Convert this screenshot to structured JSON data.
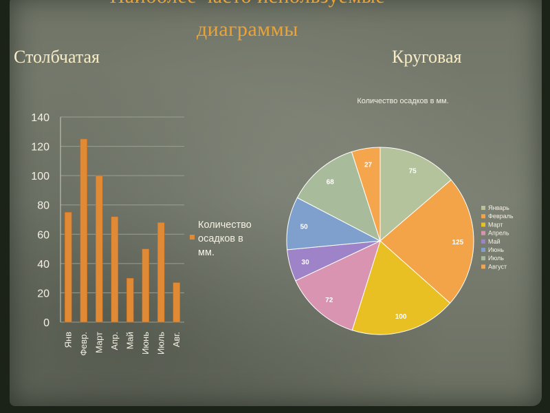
{
  "slide": {
    "title_line1": "Наиболее  часто  используемые",
    "title_line2": "диаграммы",
    "left_label": "Столбчатая",
    "right_label": "Круговая"
  },
  "colors": {
    "title": "#e8a33a",
    "labels": "#f7ecc5",
    "bar": "#e08a35",
    "bar_stroke": "#b96a22"
  },
  "chart_data": [
    {
      "type": "bar",
      "title": "",
      "xlabel": "",
      "ylabel": "",
      "categories": [
        "Янв",
        "Февр.",
        "Март",
        "Апр.",
        "Май",
        "Июнь",
        "Июль",
        "Авг."
      ],
      "series": [
        {
          "name": "Количество осадков в мм.",
          "values": [
            75,
            125,
            100,
            72,
            30,
            50,
            68,
            27
          ]
        }
      ],
      "ylim": [
        0,
        140
      ],
      "yticks": [
        0,
        20,
        40,
        60,
        80,
        100,
        120,
        140
      ],
      "grid": true,
      "legend": "right",
      "legend_lines": [
        "Количество",
        "осадков в",
        "мм."
      ]
    },
    {
      "type": "pie",
      "title": "Количество осадков в мм.",
      "categories": [
        "Январь",
        "Февраль",
        "Март",
        "Апрель",
        "Май",
        "Июнь",
        "Июль",
        "Август"
      ],
      "values": [
        75,
        125,
        100,
        72,
        30,
        50,
        68,
        27
      ],
      "colors": [
        "#b4c39b",
        "#f4a448",
        "#e8c023",
        "#d994b2",
        "#9e83c9",
        "#7fa0cc",
        "#a8bb9b",
        "#f5a64c"
      ],
      "legend": "right"
    }
  ]
}
